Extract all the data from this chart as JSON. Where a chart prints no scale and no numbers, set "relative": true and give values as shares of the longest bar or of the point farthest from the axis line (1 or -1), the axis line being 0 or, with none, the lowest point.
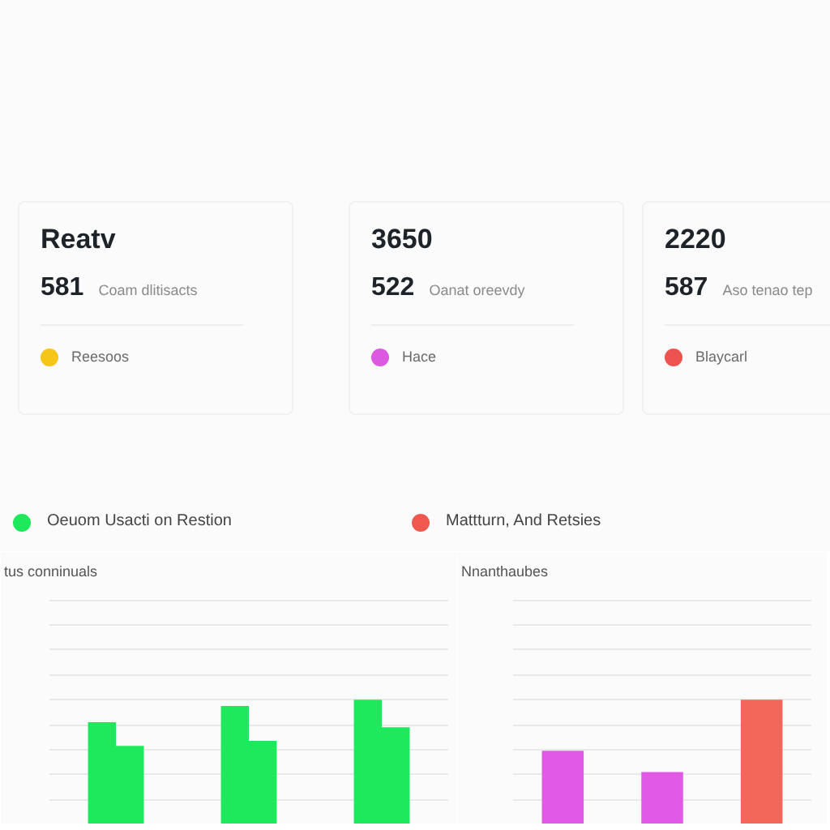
{
  "chart_data": [
    {
      "type": "other",
      "title": "Reatv",
      "annotations": [
        "581",
        "Coam dlitisacts",
        "Reesoos"
      ]
    },
    {
      "type": "other",
      "title": "3650",
      "annotations": [
        "522",
        "Oanat oreevdy",
        "Hace"
      ]
    },
    {
      "type": "other",
      "title": "2220",
      "annotations": [
        "587",
        "Aso tenao tep",
        "Blaycarl"
      ]
    },
    {
      "type": "other",
      "annotations": [
        "Oeuom Usacti on Restion",
        "Mattturn, And Retsies"
      ]
    },
    {
      "type": "bar",
      "title": "tus conninuals",
      "categories": [
        null,
        null,
        null
      ],
      "relative": true,
      "series": [
        {
          "color": "#1ee85c",
          "values": [
            0.82,
            0.95,
            1
          ]
        },
        {
          "color": "#1ee85c",
          "values": [
            0.63,
            0.67,
            0.78
          ]
        }
      ],
      "grid": "y"
    },
    {
      "type": "bar",
      "title": "Nnanthaubes",
      "categories": [
        null,
        null,
        null
      ],
      "relative": true,
      "values": [
        0.59,
        0.42,
        1
      ],
      "colors": [
        "#e05ae6",
        "#e05ae6",
        "#f2675a"
      ],
      "grid": "y"
    }
  ]
}
